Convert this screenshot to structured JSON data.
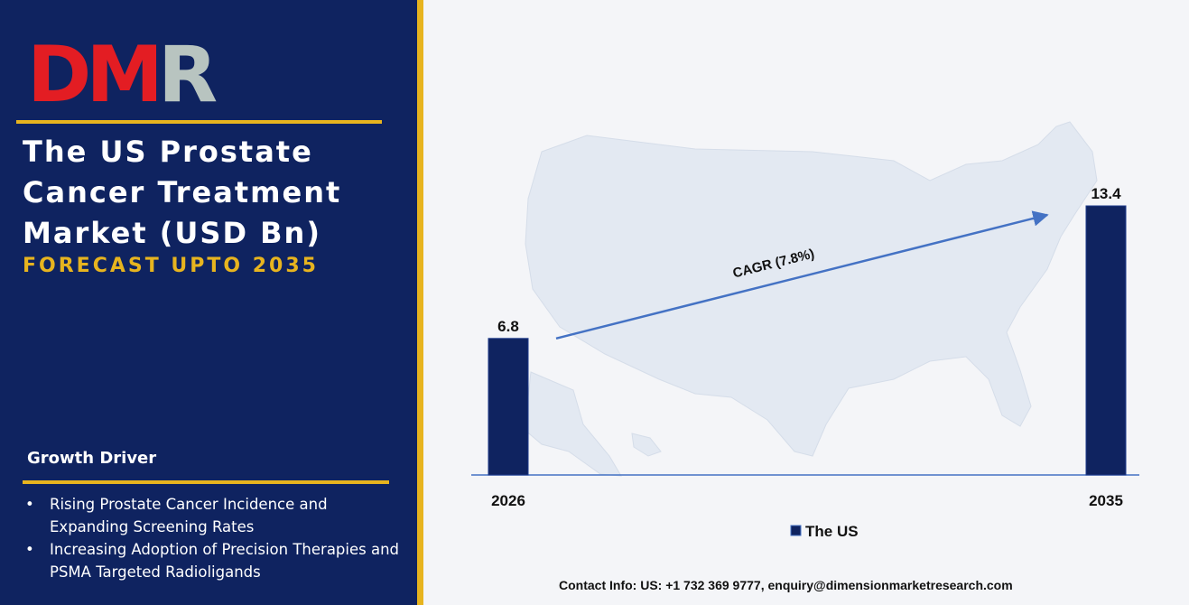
{
  "brand": {
    "logo_text": "DMR",
    "logo_colors": {
      "d_m": "#e31d23",
      "r": "#b8c4c0"
    }
  },
  "title": "The US Prostate Cancer Treatment Market (USD Bn)",
  "subtitle": "FORECAST UPTO 2035",
  "growth_driver": {
    "heading": "Growth Driver",
    "items": [
      "Rising Prostate Cancer Incidence and Expanding Screening Rates",
      "Increasing Adoption of Precision Therapies and PSMA Targeted Radioligands"
    ]
  },
  "chart_data": {
    "type": "bar",
    "categories": [
      "2026",
      "2035"
    ],
    "series": [
      {
        "name": "The US",
        "values": [
          6.8,
          13.4
        ]
      }
    ],
    "ylim": [
      0,
      13.4
    ],
    "annotation": "CAGR (7.8%)",
    "legend": "bottom",
    "grid": false
  },
  "colors": {
    "bar": "#0f2360",
    "arrow": "#4472c4",
    "accent": "#e7b41f",
    "panel": "#0f2360"
  },
  "contact": "Contact Info: US: +1 732 369 9777, enquiry@dimensionmarketresearch.com"
}
